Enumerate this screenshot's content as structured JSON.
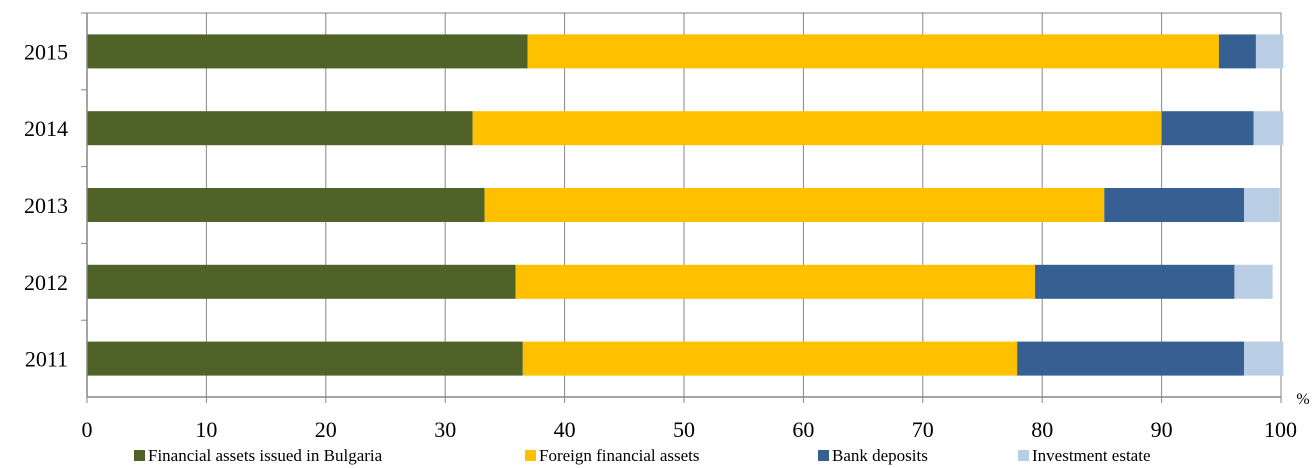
{
  "chart_data": {
    "type": "bar",
    "orientation": "horizontal",
    "stacked": true,
    "categories": [
      "2015",
      "2014",
      "2013",
      "2012",
      "2011"
    ],
    "series": [
      {
        "name": "Financial assets issued in Bulgaria",
        "color": "#4f6228",
        "values": [
          36.9,
          32.3,
          33.3,
          35.9,
          36.5
        ]
      },
      {
        "name": "Foreign financial assets",
        "color": "#ffc000",
        "values": [
          57.9,
          57.7,
          51.9,
          43.5,
          41.4
        ]
      },
      {
        "name": "Bank deposits",
        "color": "#376092",
        "values": [
          3.1,
          7.7,
          11.7,
          16.7,
          19.0
        ]
      },
      {
        "name": "Investment estate",
        "color": "#b9cde5",
        "values": [
          2.3,
          2.5,
          3.0,
          3.2,
          3.3
        ]
      }
    ],
    "xlim": [
      0,
      100
    ],
    "x_ticks": [
      "0",
      "10",
      "20",
      "30",
      "40",
      "50",
      "60",
      "70",
      "80",
      "90",
      "100"
    ],
    "x_unit": "%",
    "grid": "vertical",
    "legend_position": "bottom"
  }
}
